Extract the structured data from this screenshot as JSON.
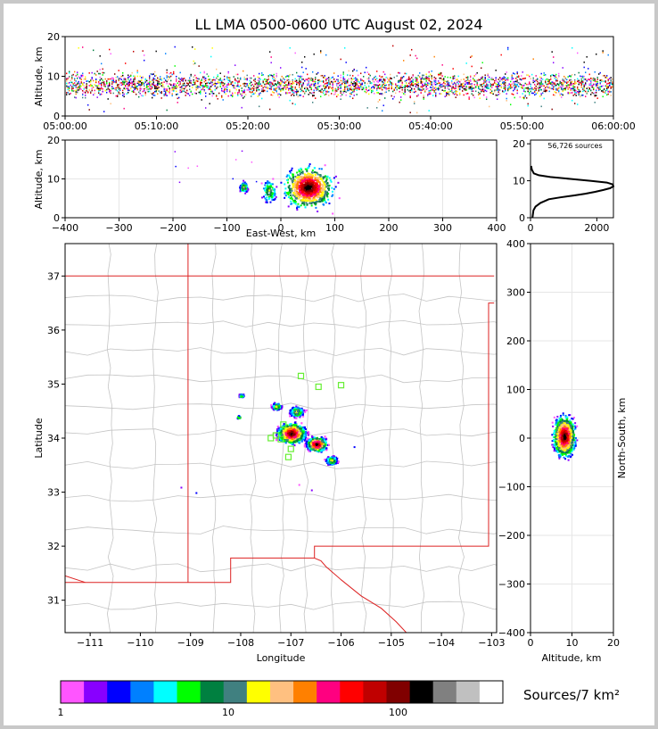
{
  "title": "LL LMA 0500-0600 UTC August 02, 2024",
  "colors": {
    "state_border": "#dd2222",
    "county_border": "#c4c4c4",
    "station_marker": "#66ee33",
    "axis": "#000000"
  },
  "chart_data": [
    {
      "id": "time_height",
      "type": "scatter",
      "ylabel": "Altitude, km",
      "xlim": [
        "05:00:00",
        "06:00:00"
      ],
      "ylim": [
        0,
        20
      ],
      "xticks": [
        "05:00:00",
        "05:10:00",
        "05:20:00",
        "05:30:00",
        "05:40:00",
        "05:50:00",
        "06:00:00"
      ],
      "yticks": [
        "0",
        "10",
        "20"
      ],
      "description_values": {
        "altitude_range_km": [
          2,
          14
        ],
        "altitude_core_km": [
          5,
          11
        ]
      }
    },
    {
      "id": "ew_height",
      "type": "heatmap",
      "xlabel": "East-West, km",
      "ylabel": "Altitude, km",
      "xlim": [
        -400,
        400
      ],
      "ylim": [
        0,
        20
      ],
      "xticks": [
        "−400",
        "−300",
        "−200",
        "−100",
        "0",
        "100",
        "200",
        "300",
        "400"
      ],
      "yticks": [
        "0",
        "10",
        "20"
      ],
      "clusters": [
        {
          "x_range": [
            -10,
            110
          ],
          "z_range": [
            1,
            15
          ],
          "peak_x": 50,
          "peak_z": 7
        },
        {
          "x_range": [
            -80,
            -60
          ],
          "z_range": [
            6,
            10
          ]
        },
        {
          "x_range": [
            -40,
            -5
          ],
          "z_range": [
            3,
            11
          ]
        }
      ]
    },
    {
      "id": "altitude_histogram",
      "type": "line",
      "annotation": "56,726 sources",
      "xlim": [
        0,
        2500
      ],
      "ylim": [
        0,
        21
      ],
      "xticks": [
        "0",
        "2000"
      ],
      "yticks": [
        "0",
        "10",
        "20"
      ],
      "x": [
        60,
        90,
        150,
        300,
        550,
        900,
        1300,
        1650,
        1950,
        2200,
        2400,
        2500,
        2480,
        2300,
        1800,
        1200,
        600,
        250,
        100,
        40,
        20
      ],
      "y": [
        0,
        2,
        3,
        4,
        5,
        5.5,
        6,
        6.5,
        7,
        7.5,
        8,
        8.5,
        9,
        9.5,
        10,
        10.5,
        11,
        11.5,
        12,
        13,
        14
      ]
    },
    {
      "id": "plan_view",
      "type": "scatter",
      "xlabel": "Longitude",
      "ylabel": "Latitude",
      "xlim": [
        -111.5,
        -102.9
      ],
      "ylim": [
        30.4,
        37.6
      ],
      "xticks": [
        "−111",
        "−110",
        "−109",
        "−108",
        "−107",
        "−106",
        "−105",
        "−104",
        "−103"
      ],
      "yticks": [
        "31",
        "32",
        "33",
        "34",
        "35",
        "36",
        "37"
      ],
      "clusters": [
        {
          "lon": -107.0,
          "lat": 34.1,
          "radius_deg": 0.35
        },
        {
          "lon": -106.5,
          "lat": 33.9,
          "radius_deg": 0.25
        },
        {
          "lon": -106.9,
          "lat": 34.5,
          "radius_deg": 0.18
        },
        {
          "lon": -107.3,
          "lat": 34.6,
          "radius_deg": 0.12
        },
        {
          "lon": -106.2,
          "lat": 33.6,
          "radius_deg": 0.15
        },
        {
          "lon": -108.0,
          "lat": 34.8,
          "radius_deg": 0.06
        },
        {
          "lon": -108.05,
          "lat": 34.4,
          "radius_deg": 0.05
        }
      ],
      "stations": [
        {
          "lon": -106.8,
          "lat": 35.15
        },
        {
          "lon": -106.45,
          "lat": 34.95
        },
        {
          "lon": -106.0,
          "lat": 34.98
        },
        {
          "lon": -107.15,
          "lat": 34.25
        },
        {
          "lon": -107.3,
          "lat": 34.05
        },
        {
          "lon": -107.2,
          "lat": 33.98
        },
        {
          "lon": -107.4,
          "lat": 34.0
        },
        {
          "lon": -107.0,
          "lat": 33.8
        },
        {
          "lon": -107.05,
          "lat": 33.65
        }
      ]
    },
    {
      "id": "ns_altitude",
      "type": "heatmap",
      "xlabel": "Altitude, km",
      "ylabel": "North-South, km",
      "xlim": [
        0,
        20
      ],
      "ylim": [
        -400,
        400
      ],
      "xticks": [
        "0",
        "10",
        "20"
      ],
      "yticks": [
        "−400",
        "−300",
        "−200",
        "−100",
        "0",
        "100",
        "200",
        "300",
        "400"
      ],
      "clusters": [
        {
          "alt_range": [
            1,
            15
          ],
          "ns_range": [
            -60,
            95
          ],
          "peak_alt": 8,
          "peak_ns": 5
        }
      ]
    }
  ],
  "colorbar": {
    "label": "Sources/7 km²",
    "ticks": [
      "1",
      "10",
      "100"
    ],
    "colors": [
      "#ff55ff",
      "#8800ff",
      "#0000ff",
      "#0080ff",
      "#00ffff",
      "#00ff00",
      "#008040",
      "#408080",
      "#ffff00",
      "#ffc080",
      "#ff8000",
      "#ff0080",
      "#ff0000",
      "#c00000",
      "#800000",
      "#000000",
      "#808080",
      "#c0c0c0",
      "#ffffff"
    ]
  }
}
